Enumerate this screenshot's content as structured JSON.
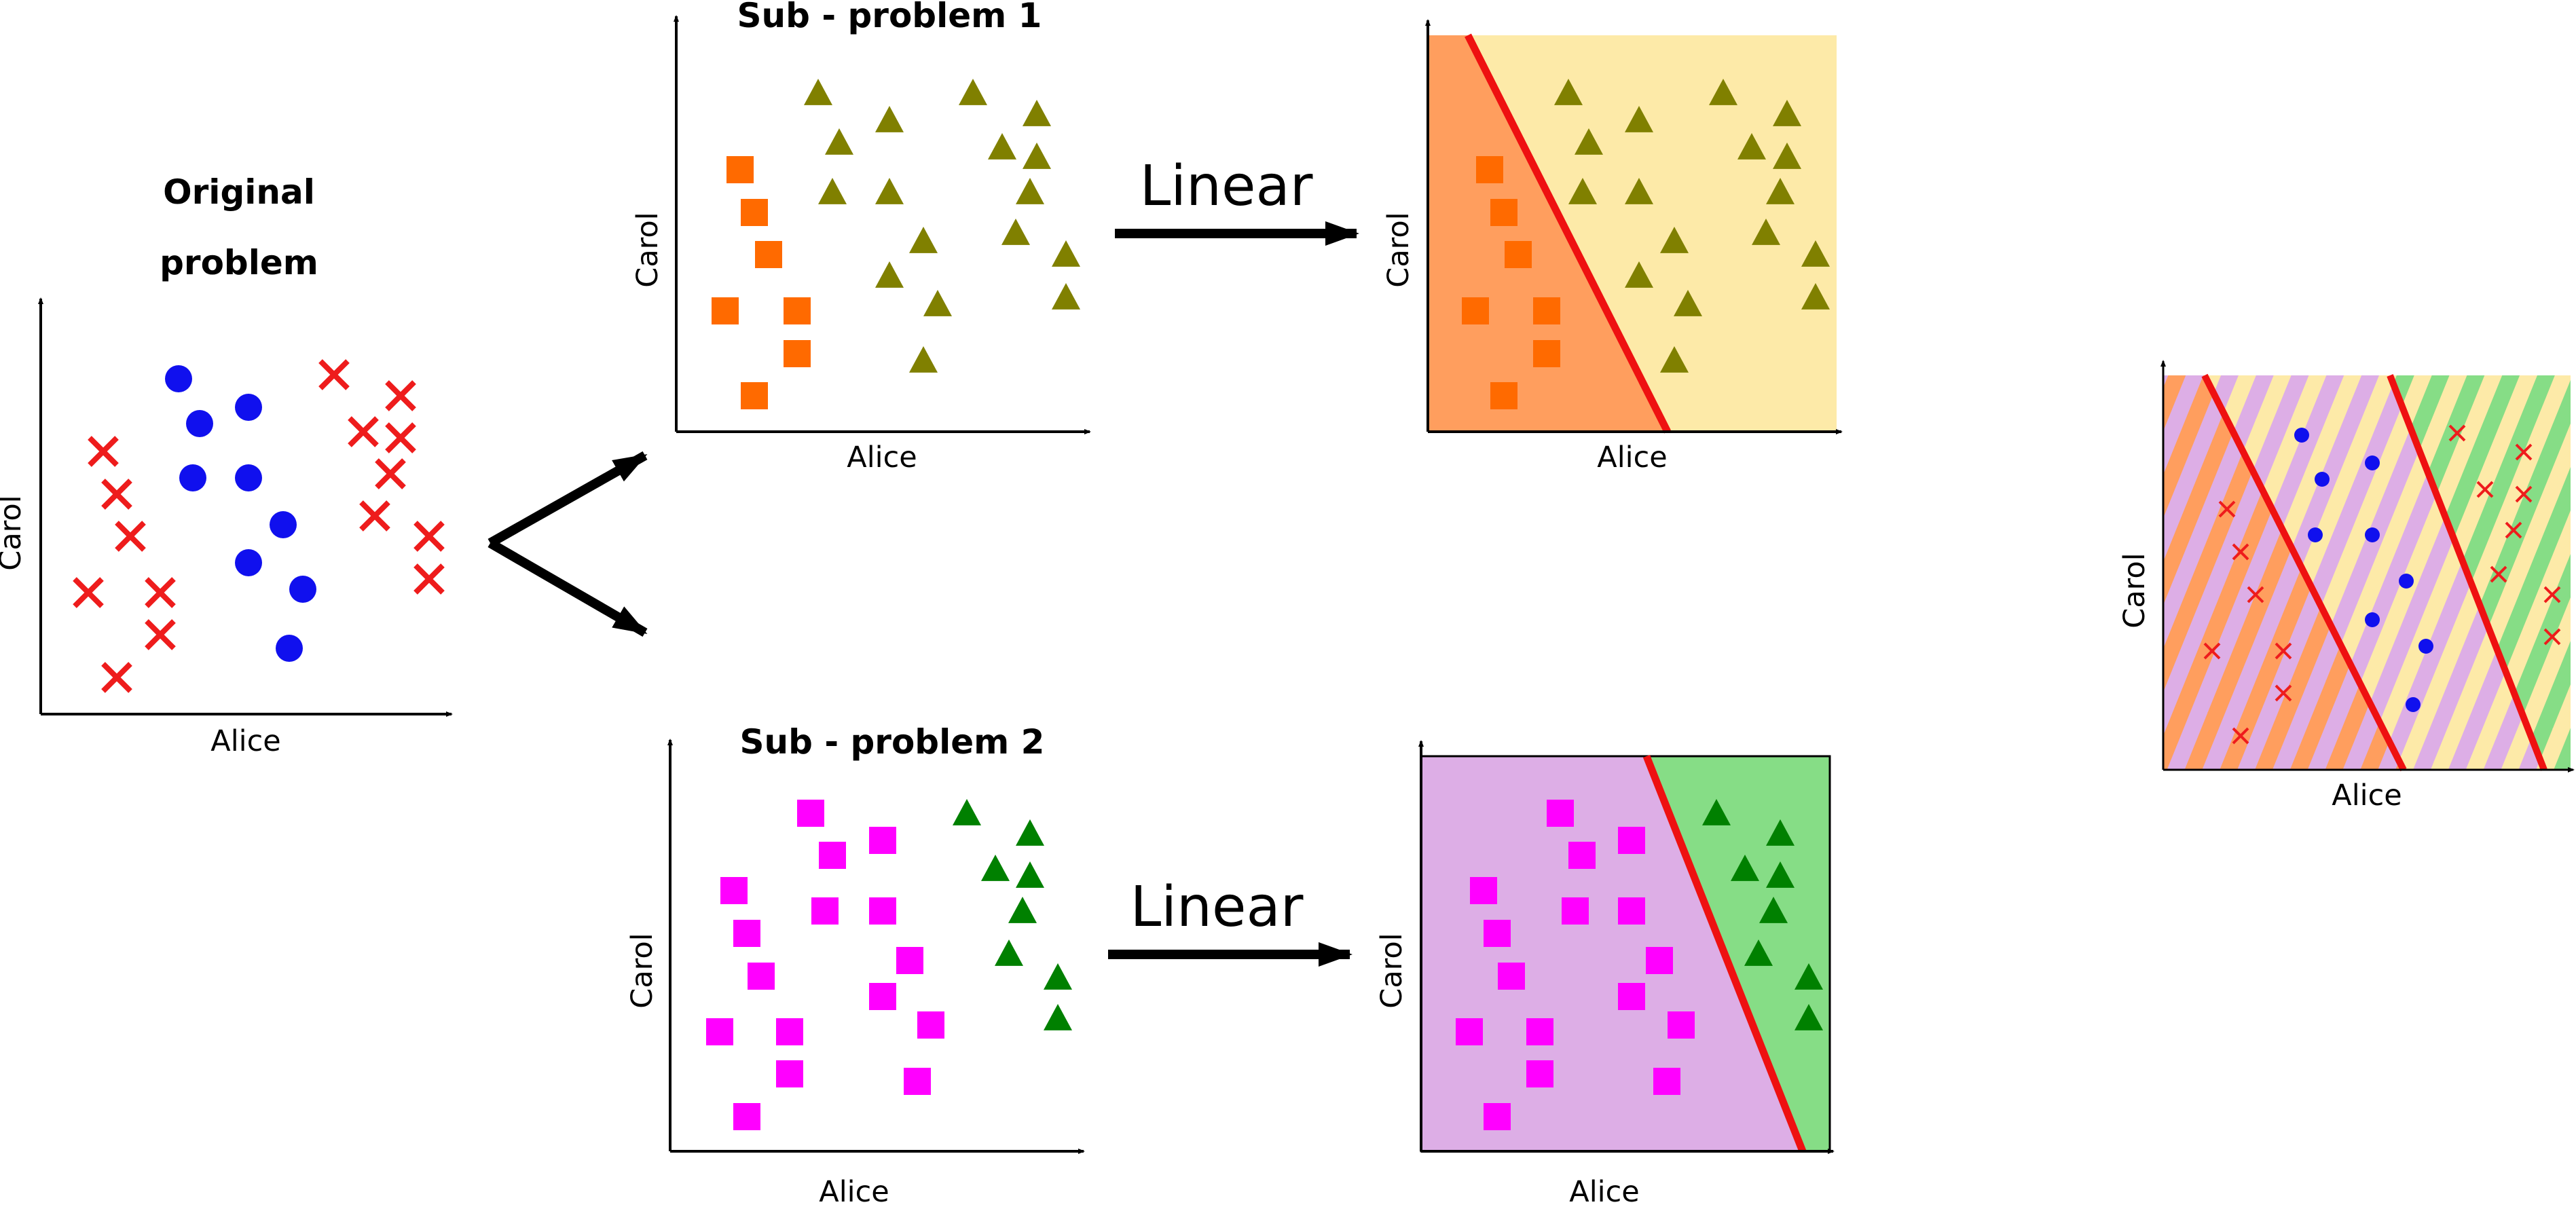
{
  "original": {
    "title_line1": "Original",
    "title_line2": "problem",
    "xlabel": "Alice",
    "ylabel": "Carol"
  },
  "sub1": {
    "title": "Sub - problem 1",
    "xlabel": "Alice",
    "ylabel": "Carol"
  },
  "sub1_result": {
    "xlabel": "Alice",
    "ylabel": "Carol"
  },
  "sub2": {
    "title": "Sub - problem 2",
    "xlabel": "Alice",
    "ylabel": "Carol"
  },
  "sub2_result": {
    "xlabel": "Alice",
    "ylabel": "Carol"
  },
  "combined": {
    "xlabel": "Alice",
    "ylabel": "Carol"
  },
  "arrows": {
    "linear1": "Linear",
    "linear2": "Linear"
  },
  "colors": {
    "class_x": "#ee1c1c",
    "class_circle": "#1010ee",
    "square_orange": "#ff6a00",
    "triangle_olive": "#808000",
    "square_magenta": "#ff00ff",
    "triangle_green": "#008000",
    "region_orange": "#ff9e5e",
    "region_yellow": "#fdeaa8",
    "region_purple": "#ddaee6",
    "region_green": "#86dd86",
    "boundary": "#ee1111"
  }
}
